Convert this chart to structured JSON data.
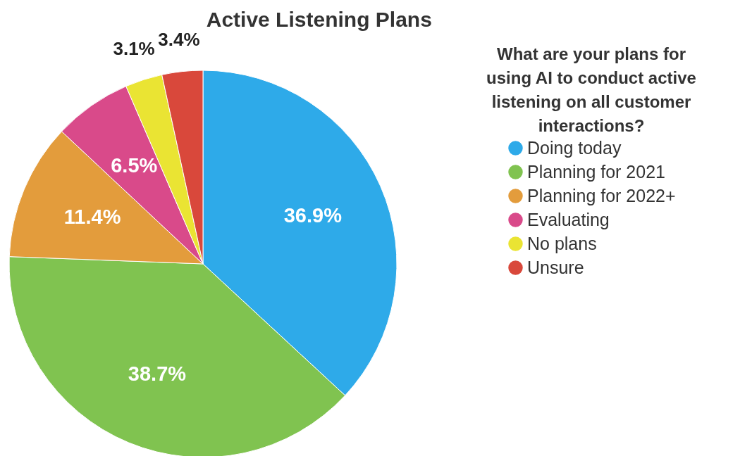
{
  "chart_data": {
    "type": "pie",
    "title": "Active Listening Plans",
    "legend_title": "What are your plans for using AI to conduct active listening on all customer interactions?",
    "categories": [
      "Doing today",
      "Planning for 2021",
      "Planning for 2022+",
      "Evaluating",
      "No plans",
      "Unsure"
    ],
    "values": [
      36.9,
      38.7,
      11.4,
      6.5,
      3.1,
      3.4
    ],
    "value_labels": [
      "36.9%",
      "38.7%",
      "11.4%",
      "6.5%",
      "3.1%",
      "3.4%"
    ],
    "colors": [
      "#2eaae9",
      "#80c350",
      "#e39c3c",
      "#d94a8a",
      "#eae433",
      "#d9483b"
    ],
    "legend": "right"
  }
}
